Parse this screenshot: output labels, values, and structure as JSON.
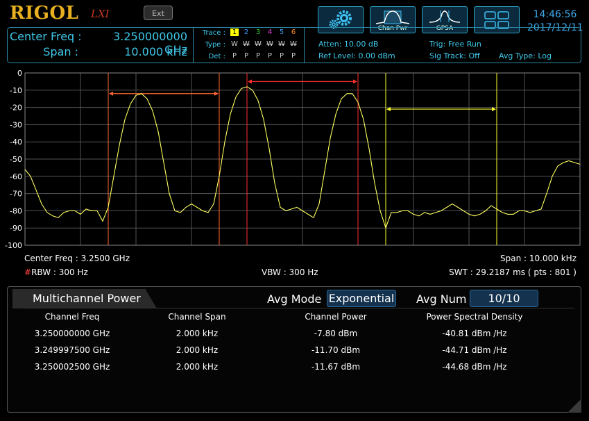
{
  "header": {
    "brand": "RIGOL",
    "brand_sub": "LXI",
    "ext_label": "Ext",
    "buttons": [
      {
        "name": "settings",
        "label": ""
      },
      {
        "name": "chan-pwr",
        "label": "Chan Pwr"
      },
      {
        "name": "gpsa",
        "label": "GPSA"
      },
      {
        "name": "layout",
        "label": ""
      }
    ],
    "time": "14:46:56",
    "date": "2017/12/11"
  },
  "info": {
    "center_label": "Center Freq :",
    "center_value": "3.250000000 GHz",
    "span_label": "Span :",
    "span_value": "10.000 kHz",
    "trace_label": "Trace :",
    "type_label": "Type :",
    "det_label": "Det :",
    "traces": [
      "1",
      "2",
      "3",
      "4",
      "5",
      "6"
    ],
    "trace_colors": [
      "#ffff00",
      "#3aa0ff",
      "#30d030",
      "#e040e0",
      "#40a0ff",
      "#ff9020"
    ],
    "types": [
      "W",
      "W",
      "W",
      "W",
      "W",
      "W"
    ],
    "dets": [
      "P",
      "P",
      "P",
      "P",
      "P",
      "P"
    ],
    "atten": "Atten: 10.00 dB",
    "ref_level": "Ref Level: 0.00 dBm",
    "trig": "Trig: Free Run",
    "sig_track": "Sig Track: Off",
    "avg_type": "Avg Type: Log"
  },
  "graph": {
    "y_ticks": [
      "0",
      "-10",
      "-20",
      "-30",
      "-40",
      "-50",
      "-60",
      "-70",
      "-80",
      "-90",
      "-100"
    ],
    "center_freq": "Center Freq : 3.2500 GHz",
    "span": "Span : 10.000 kHz",
    "rbw_mark": "#",
    "rbw": "RBW : 300 Hz",
    "vbw": "VBW : 300 Hz",
    "swt": "SWT : 29.2187 ms ( pts : 801 )",
    "trace_color": "#ffff60"
  },
  "chart_data": {
    "type": "line",
    "ylim": [
      -100,
      0
    ],
    "xlim_khz": [
      -5,
      5
    ],
    "series": [
      {
        "x_khz": [
          -5.0,
          -4.9,
          -4.8,
          -4.7,
          -4.6,
          -4.5,
          -4.4,
          -4.3,
          -4.2,
          -4.1,
          -4.0,
          -3.9,
          -3.8,
          -3.7,
          -3.6,
          -3.5,
          -3.4,
          -3.3,
          -3.2,
          -3.1,
          -3.0,
          -2.9,
          -2.8,
          -2.7,
          -2.6,
          -2.5,
          -2.4,
          -2.3,
          -2.2,
          -2.1,
          -2.0,
          -1.9,
          -1.8,
          -1.7,
          -1.6,
          -1.5,
          -1.4,
          -1.3,
          -1.2,
          -1.1,
          -1.0,
          -0.9,
          -0.8,
          -0.7,
          -0.6,
          -0.5,
          -0.4,
          -0.3,
          -0.2,
          -0.1,
          0.0,
          0.1,
          0.2,
          0.3,
          0.4,
          0.5,
          0.6,
          0.7,
          0.8,
          0.9,
          1.0,
          1.1,
          1.2,
          1.3,
          1.4,
          1.5,
          1.6,
          1.7,
          1.8,
          1.9,
          2.0,
          2.1,
          2.2,
          2.3,
          2.4,
          2.5,
          2.6,
          2.7,
          2.8,
          2.9,
          3.0,
          3.1,
          3.2,
          3.3,
          3.4,
          3.5,
          3.6,
          3.7,
          3.8,
          3.9,
          4.0,
          4.1,
          4.2,
          4.3,
          4.4,
          4.5,
          4.6,
          4.7,
          4.8,
          4.9,
          5.0
        ],
        "y_dbm": [
          -56,
          -60,
          -68,
          -76,
          -81,
          -83,
          -84,
          -81,
          -80,
          -80,
          -82,
          -79,
          -80,
          -80,
          -86,
          -78,
          -60,
          -42,
          -27,
          -18,
          -13,
          -12,
          -15,
          -22,
          -34,
          -52,
          -70,
          -80,
          -81,
          -78,
          -76,
          -78,
          -80,
          -81,
          -76,
          -60,
          -40,
          -24,
          -14,
          -9,
          -8,
          -10,
          -16,
          -27,
          -44,
          -64,
          -78,
          -80,
          -79,
          -78,
          -80,
          -82,
          -84,
          -76,
          -57,
          -38,
          -24,
          -15,
          -12,
          -12,
          -17,
          -27,
          -44,
          -64,
          -80,
          -90,
          -81,
          -81,
          -80,
          -80,
          -82,
          -83,
          -81,
          -82,
          -81,
          -80,
          -78,
          -76,
          -78,
          -80,
          -82,
          -83,
          -82,
          -80,
          -77,
          -79,
          -81,
          -82,
          -82,
          -80,
          -80,
          -81,
          -80,
          -79,
          -70,
          -60,
          -54,
          -52,
          -51,
          -52,
          -53
        ]
      }
    ],
    "channels_khz": [
      {
        "center": 0.0,
        "width": 2.0,
        "color": "#ff3030"
      },
      {
        "center": -2.5,
        "width": 2.0,
        "color": "#ff6a30"
      },
      {
        "center": 2.5,
        "width": 2.0,
        "color": "#ffff30"
      }
    ]
  },
  "panel": {
    "title": "Multichannel Power",
    "avg_mode_label": "Avg Mode",
    "avg_mode_value": "Exponential",
    "avg_num_label": "Avg Num",
    "avg_num_value": "10/10",
    "columns": [
      "Channel Freq",
      "Channel Span",
      "Channel Power",
      "Power Spectral Density"
    ],
    "rows": [
      [
        "3.250000000 GHz",
        "2.000 kHz",
        "-7.80 dBm",
        "-40.81 dBm /Hz"
      ],
      [
        "3.249997500 GHz",
        "2.000 kHz",
        "-11.70 dBm",
        "-44.71 dBm /Hz"
      ],
      [
        "3.250002500 GHz",
        "2.000 kHz",
        "-11.67 dBm",
        "-44.68 dBm /Hz"
      ]
    ]
  }
}
